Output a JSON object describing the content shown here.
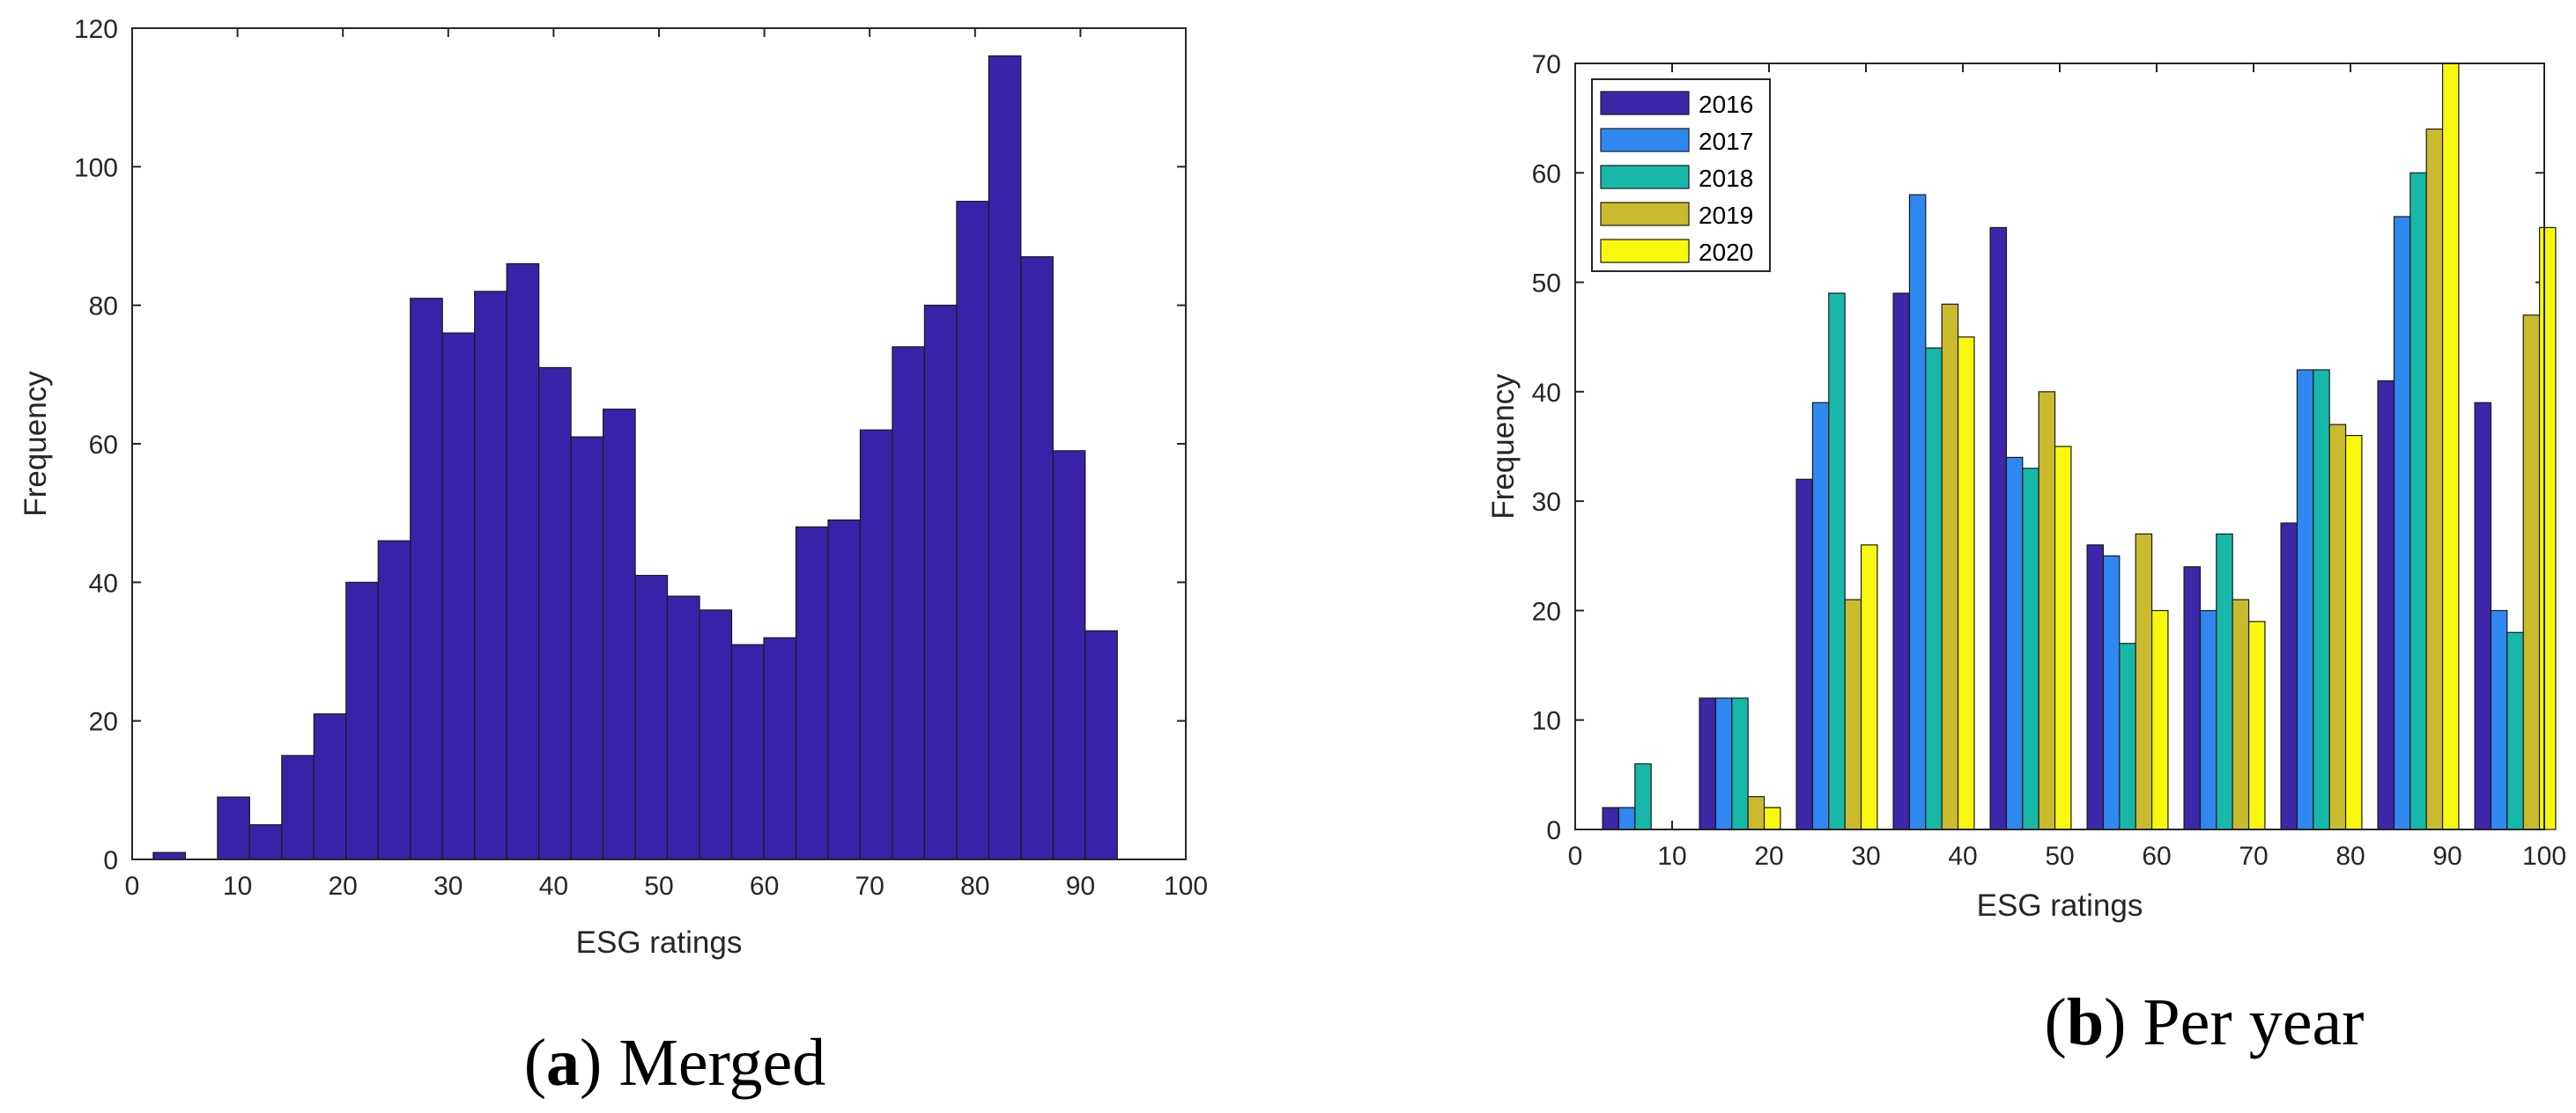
{
  "chart_data": [
    {
      "type": "bar",
      "subplot": "a",
      "caption_letter": "a",
      "caption_text": "Merged",
      "xlabel": "ESG ratings",
      "ylabel": "Frequency",
      "xlim": [
        0,
        100
      ],
      "ylim": [
        0,
        120
      ],
      "xticks": [
        0,
        10,
        20,
        30,
        40,
        50,
        60,
        70,
        80,
        90,
        100
      ],
      "yticks": [
        0,
        20,
        40,
        60,
        80,
        100,
        120
      ],
      "bin_edges": [
        2,
        5.05,
        8.1,
        11.15,
        14.2,
        17.25,
        20.3,
        23.35,
        26.4,
        29.45,
        32.5,
        35.55,
        38.6,
        41.65,
        44.7,
        47.75,
        50.8,
        53.85,
        56.9,
        59.95,
        63,
        66.05,
        69.1,
        72.15,
        75.2,
        78.25,
        81.3,
        84.35,
        87.4,
        90.45,
        93.5
      ],
      "values": [
        1,
        0,
        9,
        5,
        15,
        21,
        40,
        46,
        81,
        76,
        82,
        86,
        71,
        61,
        65,
        41,
        38,
        36,
        31,
        32,
        48,
        49,
        62,
        74,
        80,
        95,
        116,
        87,
        59,
        33
      ],
      "color": "#3a22a8"
    },
    {
      "type": "bar",
      "subplot": "b",
      "caption_letter": "b",
      "caption_text": "Per year",
      "xlabel": "ESG ratings",
      "ylabel": "Frequency",
      "xlim": [
        0,
        100
      ],
      "ylim": [
        0,
        70
      ],
      "xticks": [
        0,
        10,
        20,
        30,
        40,
        50,
        60,
        70,
        80,
        90,
        100
      ],
      "yticks": [
        0,
        10,
        20,
        30,
        40,
        50,
        60,
        70
      ],
      "legend_location": "top-left",
      "bin_centers": [
        7,
        17,
        27,
        37,
        47,
        57,
        67,
        77,
        87,
        97
      ],
      "series": [
        {
          "name": "2016",
          "color": "#3d26a8",
          "values": [
            2,
            12,
            32,
            49,
            55,
            26,
            24,
            28,
            41,
            39
          ]
        },
        {
          "name": "2017",
          "color": "#2e88f0",
          "values": [
            2,
            12,
            39,
            58,
            34,
            25,
            20,
            42,
            56,
            20
          ]
        },
        {
          "name": "2018",
          "color": "#17b8aa",
          "values": [
            6,
            12,
            49,
            44,
            33,
            17,
            27,
            42,
            60,
            18
          ]
        },
        {
          "name": "2019",
          "color": "#c9ba2e",
          "values": [
            0,
            3,
            21,
            48,
            40,
            27,
            21,
            37,
            64,
            47
          ]
        },
        {
          "name": "2020",
          "color": "#f8f80f",
          "values": [
            0,
            2,
            26,
            45,
            35,
            20,
            19,
            36,
            70,
            55
          ]
        }
      ]
    }
  ]
}
